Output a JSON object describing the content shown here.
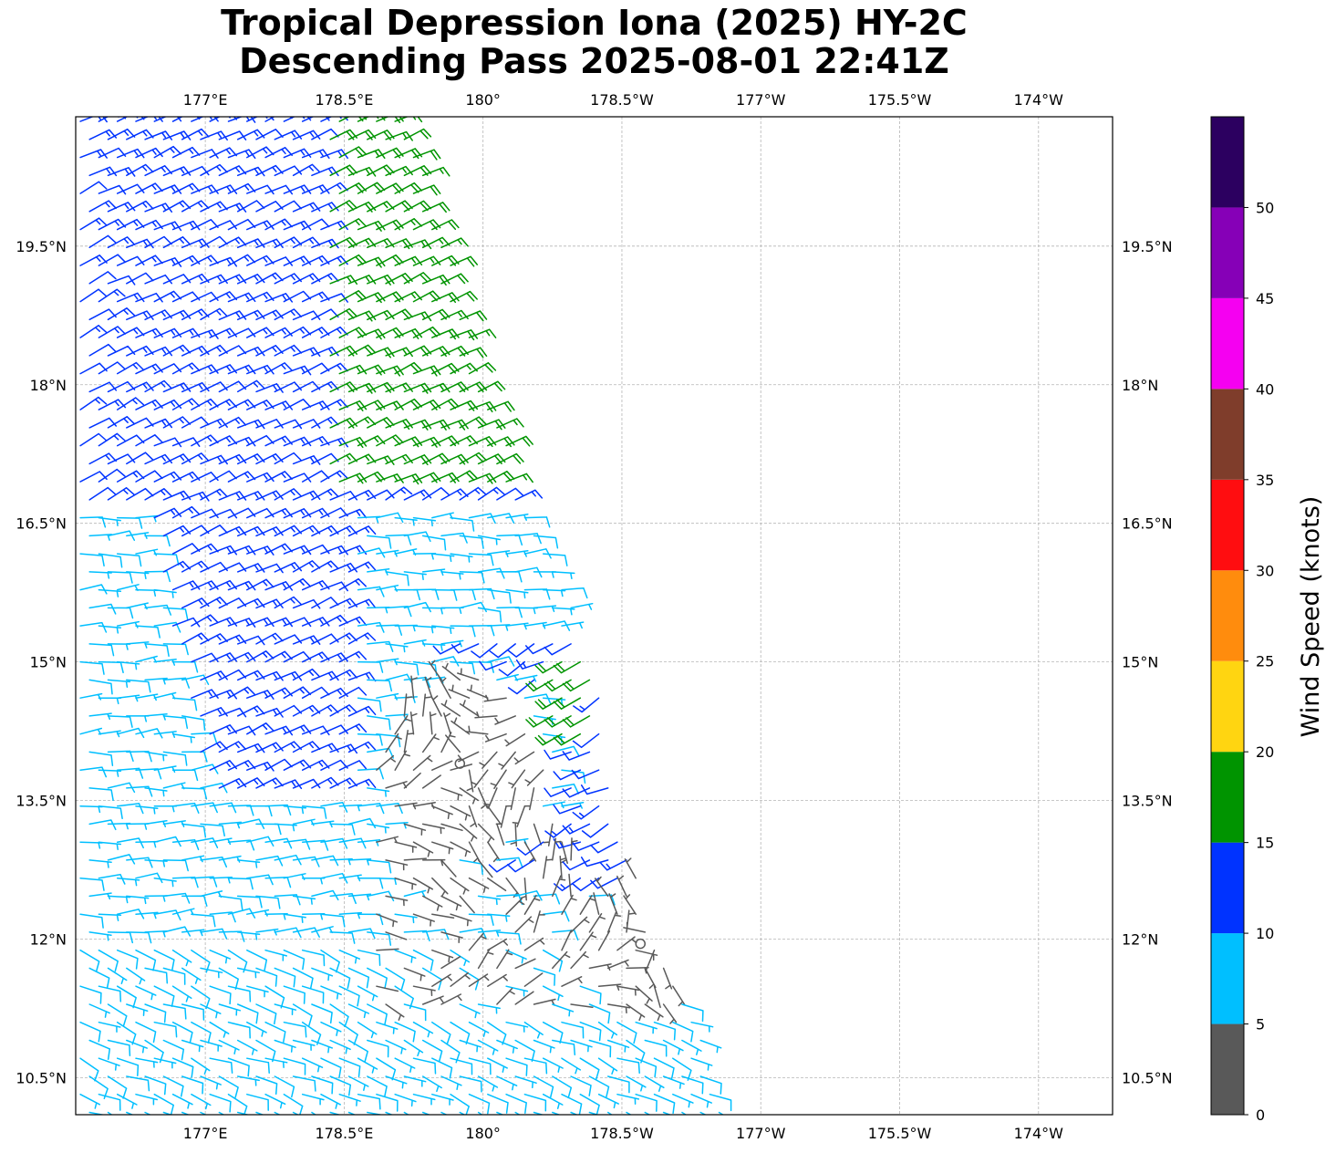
{
  "chart": {
    "title_line1": "Tropical Depression Iona (2025) HY-2C",
    "title_line2": "Descending Pass 2025-08-01 22:41Z"
  },
  "colorbar": {
    "label": "Wind Speed (knots)",
    "ticks": [
      "0",
      "5",
      "10",
      "15",
      "20",
      "25",
      "30",
      "35",
      "40",
      "45",
      "50"
    ],
    "bins": [
      {
        "min": 0,
        "max": 5,
        "color": "#595959"
      },
      {
        "min": 5,
        "max": 10,
        "color": "#00bfff"
      },
      {
        "min": 10,
        "max": 15,
        "color": "#0033ff"
      },
      {
        "min": 15,
        "max": 20,
        "color": "#009400"
      },
      {
        "min": 20,
        "max": 25,
        "color": "#ffd511"
      },
      {
        "min": 25,
        "max": 30,
        "color": "#ff8c0d"
      },
      {
        "min": 30,
        "max": 35,
        "color": "#ff0d10"
      },
      {
        "min": 35,
        "max": 40,
        "color": "#7f3d2b"
      },
      {
        "min": 40,
        "max": 45,
        "color": "#f500f1"
      },
      {
        "min": 45,
        "max": 50,
        "color": "#8600b7"
      },
      {
        "min": 50,
        "max": 55,
        "color": "#2c0060"
      }
    ]
  },
  "chart_data": {
    "type": "scatter",
    "plot_kind": "wind barbs",
    "xlim": [
      175.6,
      186.8
    ],
    "ylim": [
      10.1,
      20.9
    ],
    "x_ticks": [
      {
        "value": 177.0,
        "label": "177°E"
      },
      {
        "value": 178.5,
        "label": "178.5°E"
      },
      {
        "value": 180.0,
        "label": "180°"
      },
      {
        "value": 181.5,
        "label": "178.5°W"
      },
      {
        "value": 183.0,
        "label": "177°W"
      },
      {
        "value": 184.5,
        "label": "175.5°W"
      },
      {
        "value": 186.0,
        "label": "174°W"
      }
    ],
    "y_ticks": [
      {
        "value": 10.5,
        "label": "10.5°N"
      },
      {
        "value": 12.0,
        "label": "12°N"
      },
      {
        "value": 13.5,
        "label": "13.5°N"
      },
      {
        "value": 15.0,
        "label": "15°N"
      },
      {
        "value": 16.5,
        "label": "16.5°N"
      },
      {
        "value": 18.0,
        "label": "18°N"
      },
      {
        "value": 19.5,
        "label": "19.5°N"
      }
    ],
    "grid": true,
    "swath_east_edge": [
      [
        20.9,
        179.2
      ],
      [
        19.5,
        179.6
      ],
      [
        18.0,
        180.0
      ],
      [
        16.5,
        180.6
      ],
      [
        15.0,
        181.2
      ],
      [
        13.5,
        181.4
      ],
      [
        12.0,
        181.9
      ],
      [
        10.1,
        182.7
      ]
    ],
    "circulation_centers": [
      {
        "lon": 179.75,
        "lat": 13.9
      },
      {
        "lon": 181.7,
        "lat": 11.95
      }
    ],
    "wind_regions": [
      {
        "name": "north-flank",
        "lat": [
          16.8,
          20.9
        ],
        "lon_east": [
          178.3,
          179.9
        ],
        "speed_kt": 17,
        "dir_deg": 60
      },
      {
        "name": "north-band",
        "lat": [
          13.6,
          20.9
        ],
        "lon_east": [
          176.5,
          178.6
        ],
        "speed_kt": 12,
        "dir_deg": 60
      },
      {
        "name": "west-light",
        "lat": [
          10.1,
          16.6
        ],
        "lon_east": [
          175.6,
          177.3
        ],
        "speed_kt": 8,
        "dir_deg": 80
      },
      {
        "name": "core-calm",
        "lat": [
          11.2,
          14.6
        ],
        "lon_east": [
          178.8,
          181.7
        ],
        "speed_kt": 3,
        "dir_deg": 270
      },
      {
        "name": "east-jet",
        "lat": [
          14.2,
          15.0
        ],
        "lon_east": [
          180.7,
          181.2
        ],
        "speed_kt": 18,
        "dir_deg": 240
      }
    ],
    "barb_count_approx": 1080
  }
}
